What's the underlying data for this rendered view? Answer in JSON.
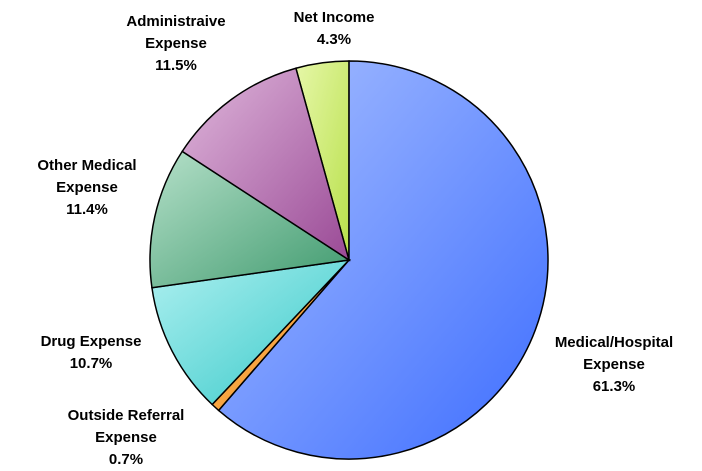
{
  "chart_data": {
    "type": "pie",
    "title": "",
    "unit": "%",
    "slices": [
      {
        "id": "net-income",
        "label_lines": [
          "Net Income"
        ],
        "value_label": "4.3%",
        "value": 4.3,
        "color": "#b8e04a",
        "highlight": "#e6f7a8"
      },
      {
        "id": "medical-hospital",
        "label_lines": [
          "Medical/Hospital",
          "Expense"
        ],
        "value_label": "61.3%",
        "value": 61.3,
        "color": "#3d6dff",
        "highlight": "#a9c0ff"
      },
      {
        "id": "outside-referral",
        "label_lines": [
          "Outside Referral",
          "Expense"
        ],
        "value_label": "0.7%",
        "value": 0.7,
        "color": "#f08a12",
        "highlight": "#ffc070"
      },
      {
        "id": "drug",
        "label_lines": [
          "Drug Expense"
        ],
        "value_label": "10.7%",
        "value": 10.7,
        "color": "#35c8c8",
        "highlight": "#aef0f0"
      },
      {
        "id": "other-medical",
        "label_lines": [
          "Other Medical",
          "Expense"
        ],
        "value_label": "11.4%",
        "value": 11.4,
        "color": "#3f9a6e",
        "highlight": "#b5e0c9"
      },
      {
        "id": "administrative",
        "label_lines": [
          "Administraive",
          "Expense"
        ],
        "value_label": "11.5%",
        "value": 11.5,
        "color": "#9a4a96",
        "highlight": "#e0b8dc"
      }
    ],
    "legend": "none (labels placed next to slices)"
  }
}
